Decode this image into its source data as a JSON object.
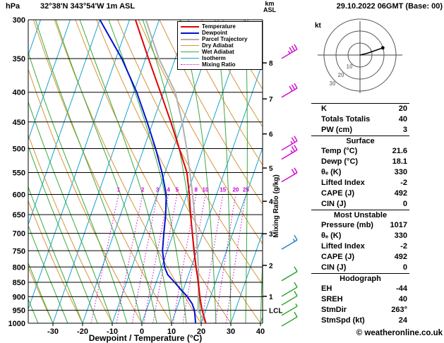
{
  "header": {
    "pressure_unit": "hPa",
    "station": "32°38'N 343°54'W 1m ASL",
    "km_label": "km",
    "asl_label": "ASL",
    "datetime": "29.10.2022 06GMT (Base: 00)"
  },
  "axes": {
    "x_title": "Dewpoint / Temperature (°C)",
    "mixing_ratio_title": "Mixing Ratio (g/kg)",
    "pressure_ticks": [
      300,
      350,
      400,
      450,
      500,
      550,
      600,
      650,
      700,
      750,
      800,
      850,
      900,
      950,
      1000
    ],
    "temp_ticks": [
      -30,
      -20,
      -10,
      0,
      10,
      20,
      30,
      40
    ],
    "km_ticks": [
      1,
      2,
      3,
      4,
      5,
      6,
      7,
      8
    ],
    "lcl_label": "LCL"
  },
  "colors": {
    "temperature": "#e00000",
    "dewpoint": "#0010d0",
    "parcel": "#b0b0b0",
    "dry_adiabat": "#d6953a",
    "wet_adiabat": "#3aaa3a",
    "isotherm": "#15a5cd",
    "mixing_ratio": "#d000d0",
    "axis": "#000000",
    "barb_high": "#d000d0",
    "barb_mid": "#2080c0",
    "barb_low": "#20a020"
  },
  "legend": {
    "items": [
      {
        "label": "Temperature",
        "role": "temperature",
        "thick": true
      },
      {
        "label": "Dewpoint",
        "role": "dewpoint",
        "thick": true
      },
      {
        "label": "Parcel Trajectory",
        "role": "parcel",
        "thick": true
      },
      {
        "label": "Dry Adiabat",
        "role": "dry_adiabat"
      },
      {
        "label": "Wet Adiabat",
        "role": "wet_adiabat"
      },
      {
        "label": "Isotherm",
        "role": "isotherm"
      },
      {
        "label": "Mixing Ratio",
        "role": "mixing_ratio",
        "dotted": true
      }
    ]
  },
  "hodograph": {
    "kt_label": "kt",
    "rings_kt": [
      10,
      20,
      30
    ],
    "trace_kt": [
      [
        0,
        0
      ],
      [
        6,
        1.5
      ],
      [
        12,
        3.5
      ],
      [
        19,
        6
      ]
    ],
    "dot_kt": [
      19,
      6
    ]
  },
  "stats": {
    "groups": [
      {
        "title": null,
        "rows": [
          {
            "label": "K",
            "value": "20"
          },
          {
            "label": "Totals Totalis",
            "value": "40"
          },
          {
            "label": "PW (cm)",
            "value": "3"
          }
        ]
      },
      {
        "title": "Surface",
        "rows": [
          {
            "label": "Temp (°C)",
            "value": "21.6"
          },
          {
            "label": "Dewp (°C)",
            "value": "18.1"
          },
          {
            "label": "θₑ (K)",
            "value": "330"
          },
          {
            "label": "Lifted Index",
            "value": "-2"
          },
          {
            "label": "CAPE (J)",
            "value": "492"
          },
          {
            "label": "CIN (J)",
            "value": "0"
          }
        ]
      },
      {
        "title": "Most Unstable",
        "rows": [
          {
            "label": "Pressure (mb)",
            "value": "1017"
          },
          {
            "label": "θₑ (K)",
            "value": "330"
          },
          {
            "label": "Lifted Index",
            "value": "-2"
          },
          {
            "label": "CAPE (J)",
            "value": "492"
          },
          {
            "label": "CIN (J)",
            "value": "0"
          }
        ]
      },
      {
        "title": "Hodograph",
        "rows": [
          {
            "label": "EH",
            "value": "-44"
          },
          {
            "label": "SREH",
            "value": "40"
          },
          {
            "label": "StmDir",
            "value": "263°"
          },
          {
            "label": "StmSpd (kt)",
            "value": "24"
          }
        ]
      }
    ]
  },
  "footer": {
    "copyright": "© weatheronline.co.uk"
  },
  "chart_data": {
    "type": "skewt-logp-sounding",
    "title": "32°38'N 343°54'W 1m ASL",
    "datetime": "29.10.2022 06GMT (Base: 00)",
    "pressure_range_hpa": [
      300,
      1000
    ],
    "temperature_axis_c": [
      -30,
      40
    ],
    "lcl_pressure_hpa": 950,
    "grid": {
      "isotherms_c": [
        -80,
        -70,
        -60,
        -50,
        -40,
        -30,
        -20,
        -10,
        0,
        10,
        20,
        30,
        40
      ],
      "dry_adiabats_c": [
        -40,
        -30,
        -20,
        -10,
        0,
        10,
        20,
        30,
        40,
        50,
        60,
        70,
        80,
        90,
        100,
        110,
        120
      ],
      "wet_adiabats_c": [
        -40,
        -35,
        -30,
        -25,
        -20,
        -15,
        -10,
        -5,
        0,
        5,
        10,
        15,
        20,
        25,
        30,
        35,
        40,
        45,
        50
      ],
      "mixing_ratio_gkg": [
        1,
        2,
        3,
        4,
        5,
        8,
        10,
        15,
        20,
        25
      ]
    },
    "profiles": {
      "temperature_p_t": [
        [
          1000,
          21.6
        ],
        [
          975,
          20.2
        ],
        [
          950,
          18.8
        ],
        [
          925,
          17.6
        ],
        [
          900,
          16.4
        ],
        [
          850,
          14.2
        ],
        [
          800,
          11.6
        ],
        [
          750,
          9.0
        ],
        [
          700,
          6.4
        ],
        [
          650,
          3.6
        ],
        [
          600,
          0.8
        ],
        [
          550,
          -2.6
        ],
        [
          500,
          -8.0
        ],
        [
          450,
          -14.0
        ],
        [
          400,
          -21.0
        ],
        [
          350,
          -29.0
        ],
        [
          300,
          -38.0
        ]
      ],
      "dewpoint_p_t": [
        [
          1000,
          18.1
        ],
        [
          975,
          17.2
        ],
        [
          950,
          16.2
        ],
        [
          925,
          14.6
        ],
        [
          900,
          12.2
        ],
        [
          875,
          9.2
        ],
        [
          850,
          6.2
        ],
        [
          825,
          3.0
        ],
        [
          800,
          1.0
        ],
        [
          750,
          -1.6
        ],
        [
          700,
          -3.2
        ],
        [
          650,
          -4.8
        ],
        [
          600,
          -7.0
        ],
        [
          550,
          -11.0
        ],
        [
          500,
          -16.0
        ],
        [
          450,
          -22.0
        ],
        [
          400,
          -29.0
        ],
        [
          350,
          -38.0
        ],
        [
          300,
          -50.0
        ]
      ],
      "parcel_p_t": [
        [
          1000,
          21.6
        ],
        [
          950,
          17.4
        ],
        [
          900,
          15.9
        ],
        [
          850,
          14.3
        ],
        [
          800,
          12.4
        ],
        [
          750,
          10.2
        ],
        [
          700,
          7.8
        ],
        [
          650,
          5.0
        ],
        [
          600,
          1.9
        ],
        [
          550,
          -1.6
        ],
        [
          500,
          -5.5
        ],
        [
          450,
          -10.2
        ],
        [
          400,
          -16.0
        ],
        [
          350,
          -25.5
        ],
        [
          300,
          -34.5
        ]
      ]
    },
    "wind_barbs": [
      {
        "p": 342,
        "level": "high",
        "speed_kt": 35
      },
      {
        "p": 399,
        "level": "high",
        "speed_kt": 30
      },
      {
        "p": 492,
        "level": "high",
        "speed_kt": 25
      },
      {
        "p": 510,
        "level": "high",
        "speed_kt": 25
      },
      {
        "p": 558,
        "level": "high",
        "speed_kt": 20
      },
      {
        "p": 729,
        "level": "mid",
        "speed_kt": 15
      },
      {
        "p": 826,
        "level": "low",
        "speed_kt": 10
      },
      {
        "p": 879,
        "level": "low",
        "speed_kt": 10
      },
      {
        "p": 910,
        "level": "low",
        "speed_kt": 10
      },
      {
        "p": 948,
        "level": "low",
        "speed_kt": 5
      },
      {
        "p": 989,
        "level": "low",
        "speed_kt": 10
      }
    ]
  }
}
